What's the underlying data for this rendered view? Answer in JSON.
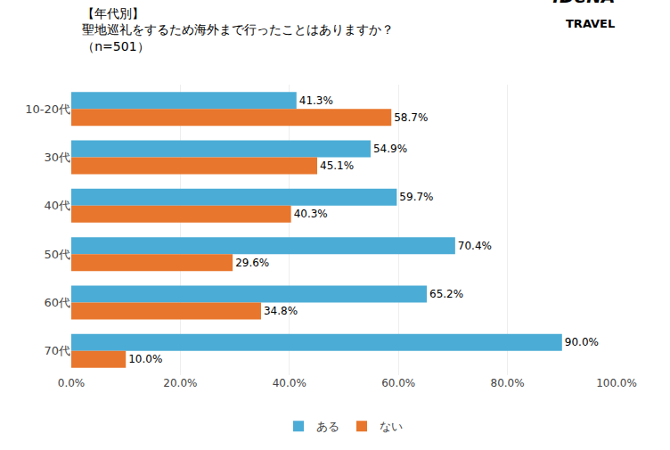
{
  "chart_data": {
    "type": "bar",
    "orientation": "horizontal",
    "title": "【年代別】\n聖地巡礼をするため海外まで行ったことはありますか？\n（n=501）",
    "annotations": [
      ":DeNA",
      "TRAVEL"
    ],
    "categories": [
      "10-20代",
      "30代",
      "40代",
      "50代",
      "60代",
      "70代"
    ],
    "series": [
      {
        "name": "ある",
        "color": "#4BACD6",
        "values": [
          41.3,
          54.9,
          59.7,
          70.4,
          65.2,
          90.0
        ],
        "value_labels": [
          "41.3%",
          "54.9%",
          "59.7%",
          "70.4%",
          "65.2%",
          "90.0%"
        ]
      },
      {
        "name": "ない",
        "color": "#E8762C",
        "values": [
          58.7,
          45.1,
          40.3,
          29.6,
          34.8,
          10.0
        ],
        "value_labels": [
          "58.7%",
          "45.1%",
          "40.3%",
          "29.6%",
          "34.8%",
          "10.0%"
        ]
      }
    ],
    "xlim": [
      0,
      100
    ],
    "xticks": [
      {
        "value": 0,
        "label": "0.0%"
      },
      {
        "value": 20,
        "label": "20.0%"
      },
      {
        "value": 40,
        "label": "40.0%"
      },
      {
        "value": 60,
        "label": "60.0%"
      },
      {
        "value": 80,
        "label": "80.0%"
      },
      {
        "value": 100,
        "label": "100.0%"
      }
    ],
    "grid": true,
    "legend": "bottom",
    "data_labels": true
  }
}
